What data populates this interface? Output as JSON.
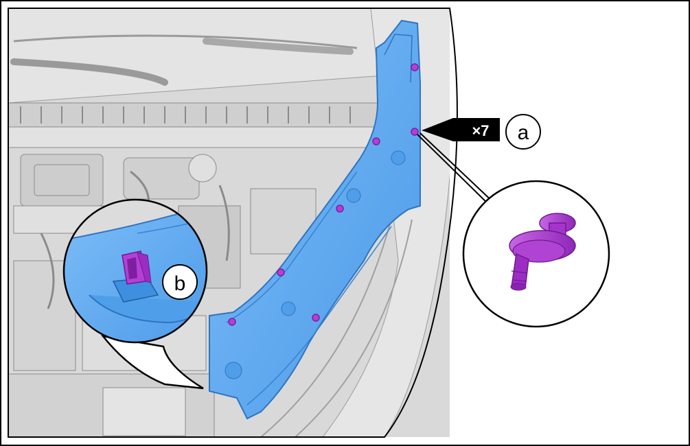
{
  "callouts": {
    "a": {
      "label": "a",
      "quantity": "×7"
    },
    "b": {
      "label": "b"
    }
  },
  "colors": {
    "shield_blue": "#5aa9f3",
    "shield_blue_dark": "#3f8fe0",
    "clip_purple": "#b43fd6",
    "clip_purple_dark": "#7e1fa0",
    "engine_gray": "#dcdcdc",
    "line_gray": "#8a8a8a"
  },
  "icons": [
    "arrow-icon",
    "push-pin-clip-icon",
    "retaining-tab-icon"
  ]
}
